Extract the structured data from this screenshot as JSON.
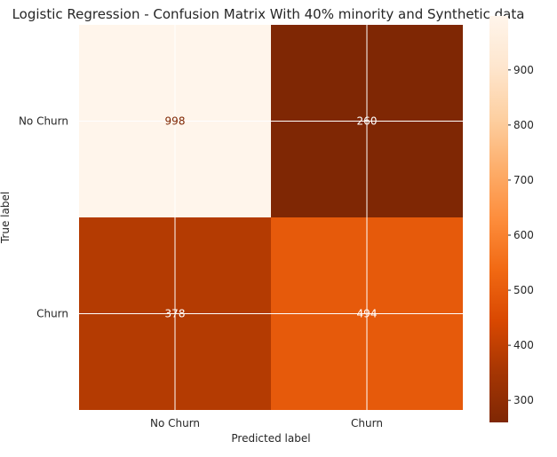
{
  "chart_data": {
    "type": "heatmap",
    "title": "Logistic Regression - Confusion Matrix With 40% minority and Synthetic data",
    "xlabel": "Predicted label",
    "ylabel": "True label",
    "x_categories": [
      "No Churn",
      "Churn"
    ],
    "y_categories": [
      "No Churn",
      "Churn"
    ],
    "values": [
      [
        998,
        260
      ],
      [
        378,
        494
      ]
    ],
    "colormap": "Oranges_r",
    "colorbar": {
      "min": 260,
      "max": 998,
      "ticks": [
        300,
        400,
        500,
        600,
        700,
        800,
        900
      ]
    },
    "colors": {
      "high": "#fff5eb",
      "low": "#7f2704",
      "grid": "#ffffff",
      "text_dark": "#7f2704",
      "text_light": "#ffffff"
    },
    "grid": true
  }
}
